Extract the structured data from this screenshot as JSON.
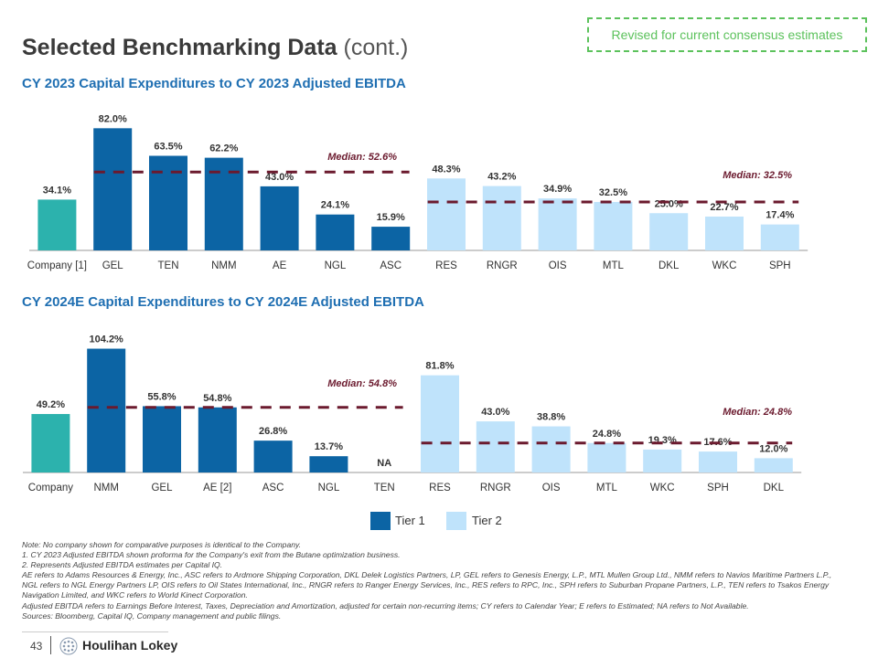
{
  "page": {
    "title_main": "Selected Benchmarking Data",
    "title_cont": "(cont.)",
    "revised_note": "Revised for current consensus estimates",
    "page_number": "43",
    "logo_text": "Houlihan Lokey"
  },
  "colors": {
    "tier1": "#0c64a4",
    "tier2": "#bfe3fb",
    "company": "#2cb2ad",
    "median_line": "#6b1a2e",
    "title": "#1f6fb2"
  },
  "legend": {
    "tier1_label": "Tier 1",
    "tier2_label": "Tier 2"
  },
  "notes": [
    "Note: No company shown for comparative purposes is identical to the Company.",
    "1. CY 2023 Adjusted EBITDA shown proforma for the Company's exit from the Butane optimization business.",
    "2. Represents Adjusted EBITDA estimates per Capital IQ.",
    "AE refers to Adams Resources & Energy, Inc., ASC refers to Ardmore Shipping Corporation, DKL Delek Logistics Partners, LP, GEL refers to Genesis Energy, L.P., MTL Mullen Group Ltd., NMM refers to Navios Maritime Partners L.P.,",
    "NGL refers to NGL Energy Partners LP, OIS refers to Oil States International, Inc., RNGR refers to Ranger Energy Services, Inc., RES refers to RPC, Inc., SPH refers to Suburban Propane Partners, L.P., TEN refers to Tsakos Energy",
    "Navigation Limited, and WKC refers to World Kinect Corporation.",
    "Adjusted EBITDA refers to Earnings Before Interest, Taxes, Depreciation and Amortization, adjusted for certain non-recurring items; CY refers to Calendar Year; E refers to Estimated; NA refers to Not Available.",
    "Sources: Bloomberg, Capital IQ, Company management and public filings."
  ],
  "chart_data": [
    {
      "type": "bar",
      "title": "CY 2023 Capital Expenditures to CY 2023 Adjusted EBITDA",
      "categories": [
        "Company [1]",
        "GEL",
        "TEN",
        "NMM",
        "AE",
        "NGL",
        "ASC",
        "RES",
        "RNGR",
        "OIS",
        "MTL",
        "DKL",
        "WKC",
        "SPH"
      ],
      "values": [
        34.1,
        82.0,
        63.5,
        62.2,
        43.0,
        24.1,
        15.9,
        48.3,
        43.2,
        34.9,
        32.5,
        25.0,
        22.7,
        17.4
      ],
      "labels": [
        "34.1%",
        "82.0%",
        "63.5%",
        "62.2%",
        "43.0%",
        "24.1%",
        "15.9%",
        "48.3%",
        "43.2%",
        "34.9%",
        "32.5%",
        "25.0%",
        "22.7%",
        "17.4%"
      ],
      "groups": [
        "company",
        "tier1",
        "tier1",
        "tier1",
        "tier1",
        "tier1",
        "tier1",
        "tier2",
        "tier2",
        "tier2",
        "tier2",
        "tier2",
        "tier2",
        "tier2"
      ],
      "medians": [
        {
          "label": "Median: 52.6%",
          "value": 52.6,
          "from": 1,
          "to": 6
        },
        {
          "label": "Median: 32.5%",
          "value": 32.5,
          "from": 7,
          "to": 13
        }
      ]
    },
    {
      "type": "bar",
      "title": "CY 2024E Capital Expenditures to CY 2024E Adjusted EBITDA",
      "categories": [
        "Company",
        "NMM",
        "GEL",
        "AE [2]",
        "ASC",
        "NGL",
        "TEN",
        "RES",
        "RNGR",
        "OIS",
        "MTL",
        "WKC",
        "SPH",
        "DKL"
      ],
      "values": [
        49.2,
        104.2,
        55.8,
        54.8,
        26.8,
        13.7,
        null,
        81.8,
        43.0,
        38.8,
        24.8,
        19.3,
        17.6,
        12.0
      ],
      "labels": [
        "49.2%",
        "104.2%",
        "55.8%",
        "54.8%",
        "26.8%",
        "13.7%",
        "NA",
        "81.8%",
        "43.0%",
        "38.8%",
        "24.8%",
        "19.3%",
        "17.6%",
        "12.0%"
      ],
      "groups": [
        "company",
        "tier1",
        "tier1",
        "tier1",
        "tier1",
        "tier1",
        "tier1",
        "tier2",
        "tier2",
        "tier2",
        "tier2",
        "tier2",
        "tier2",
        "tier2"
      ],
      "medians": [
        {
          "label": "Median: 54.8%",
          "value": 54.8,
          "from": 1,
          "to": 6
        },
        {
          "label": "Median: 24.8%",
          "value": 24.8,
          "from": 7,
          "to": 13
        }
      ]
    }
  ]
}
